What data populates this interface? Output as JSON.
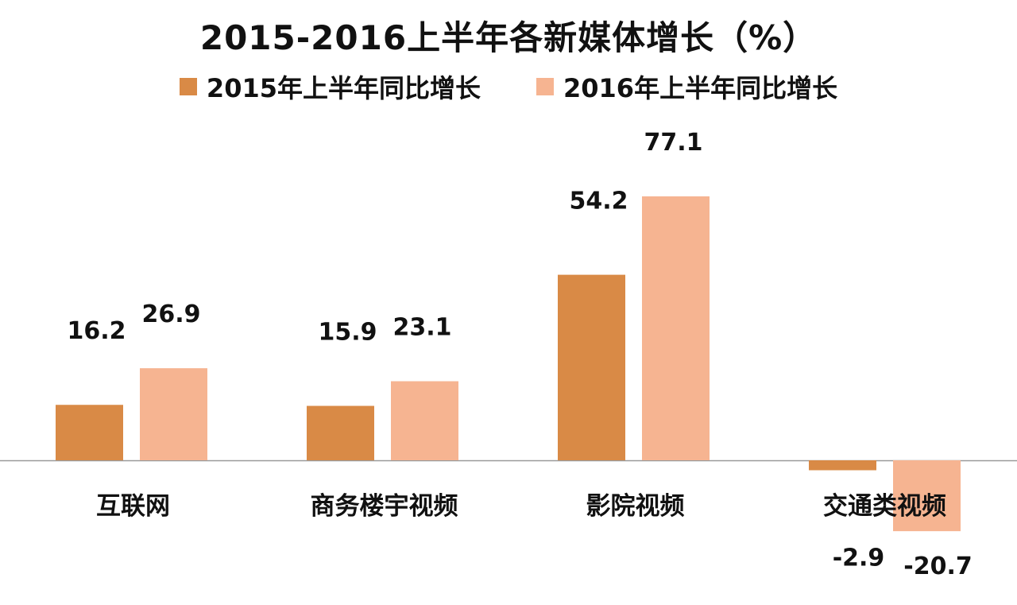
{
  "chart_data": {
    "type": "bar",
    "title": "2015-2016上半年各新媒体增长（%）",
    "categories": [
      "互联网",
      "商务楼宇视频",
      "影院视频",
      "交通类视频"
    ],
    "series": [
      {
        "name": "2015年上半年同比增长",
        "color": "#D98A46",
        "values": [
          16.2,
          15.9,
          54.2,
          -2.9
        ],
        "labels": [
          "16.2",
          "15.9",
          "54.2",
          "-2.9"
        ]
      },
      {
        "name": "2016年上半年同比增长",
        "color": "#F6B491",
        "values": [
          26.9,
          23.1,
          77.1,
          -20.7
        ],
        "labels": [
          "26.9",
          "23.1",
          "77.1",
          "-20.7"
        ]
      }
    ],
    "ylim": [
      -20.7,
      77.1
    ],
    "legend_position": "top",
    "grid": false,
    "baseline_color": "#9A9A9A"
  }
}
